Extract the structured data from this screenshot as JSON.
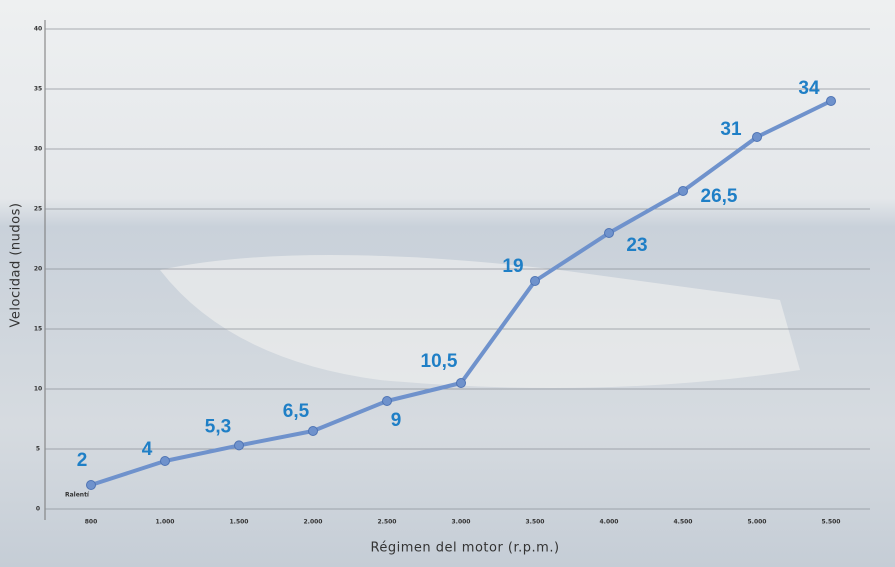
{
  "chart_data": {
    "type": "line",
    "x_label": "Régimen del motor (r.p.m.)",
    "y_label": "Velocidad (nudos)",
    "categories": [
      "800",
      "1.000",
      "1.500",
      "2.000",
      "2.500",
      "3.000",
      "3.500",
      "4.000",
      "4.500",
      "5.000",
      "5.500"
    ],
    "values": [
      2,
      4,
      5.3,
      6.5,
      9,
      10.5,
      19,
      23,
      26.5,
      31,
      34
    ],
    "value_labels": [
      "2",
      "4",
      "5,3",
      "6,5",
      "9",
      "10,5",
      "19",
      "23",
      "26,5",
      "31",
      "34"
    ],
    "annotation": "Ralentí",
    "color": "#6f92cc",
    "label_color": "#1f7fc6",
    "ylim": [
      0,
      40
    ],
    "yticks": [
      0,
      5,
      10,
      15,
      20,
      25,
      30,
      35,
      40
    ],
    "grid": true
  }
}
